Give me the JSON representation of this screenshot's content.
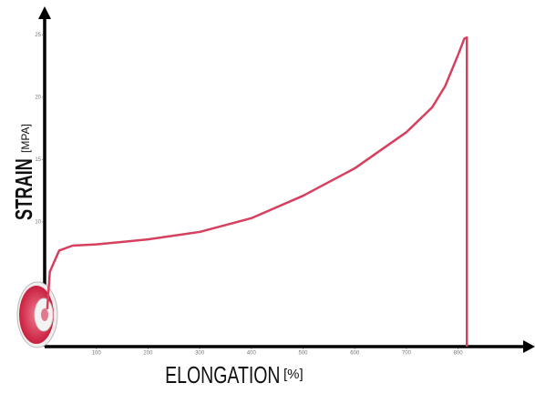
{
  "chart_data": {
    "type": "line",
    "y_label": "STRAIN",
    "y_label_unit": "[MPA]",
    "x_label": "ELONGATION",
    "x_label_unit": "[%]",
    "x": [
      5,
      10,
      28,
      54,
      100,
      200,
      300,
      400,
      500,
      600,
      700,
      750,
      775,
      800,
      812,
      817,
      817,
      817
    ],
    "values": [
      3,
      6,
      7.7,
      8.1,
      8.2,
      8.6,
      9.2,
      10.3,
      12.1,
      14.3,
      17.2,
      19.2,
      20.9,
      23.4,
      24.7,
      24.8,
      12.5,
      0
    ],
    "color": "#d6405e",
    "xlim": [
      0,
      940
    ],
    "ylim": [
      0,
      27
    ],
    "xticks": [
      100,
      200,
      300,
      400,
      500,
      600,
      700,
      800
    ],
    "yticks": [
      10,
      15,
      20,
      25
    ]
  }
}
